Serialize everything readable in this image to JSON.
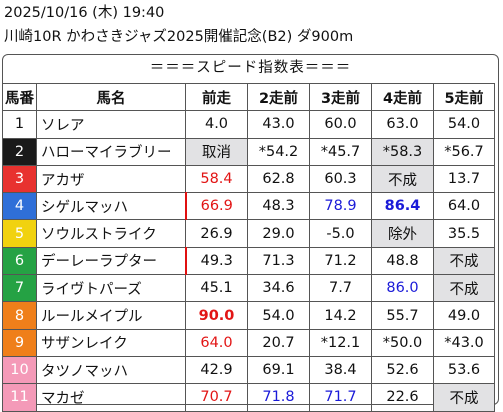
{
  "header": {
    "datetime": "2025/10/16 (木) 19:40",
    "race": "川崎10R かわさきジャズ2025開催記念(B2) ダ900m"
  },
  "table_title": "＝＝＝スピード指数表＝＝＝",
  "columns": [
    "馬番",
    "馬名",
    "前走",
    "2走前",
    "3走前",
    "4走前",
    "5走前"
  ],
  "rows": [
    {
      "no": "1",
      "name": "ソレア",
      "v": [
        "4.0",
        "43.0",
        "60.0",
        "63.0",
        "54.0"
      ]
    },
    {
      "no": "2",
      "name": "ハローマイラブリー",
      "v": [
        "取消",
        "*54.2",
        "*45.7",
        "*58.3",
        "*56.7"
      ]
    },
    {
      "no": "3",
      "name": "アカザ",
      "v": [
        "58.4",
        "62.8",
        "60.3",
        "不成",
        "13.7"
      ]
    },
    {
      "no": "4",
      "name": "シゲルマッハ",
      "v": [
        "66.9",
        "48.3",
        "78.9",
        "86.4",
        "64.0"
      ]
    },
    {
      "no": "5",
      "name": "ソウルストライク",
      "v": [
        "26.9",
        "29.0",
        "-5.0",
        "除外",
        "35.5"
      ]
    },
    {
      "no": "6",
      "name": "デーレーラプター",
      "v": [
        "49.3",
        "71.3",
        "71.2",
        "48.8",
        "不成"
      ]
    },
    {
      "no": "7",
      "name": "ライヴトパーズ",
      "v": [
        "45.1",
        "34.6",
        "7.7",
        "86.0",
        "不成"
      ]
    },
    {
      "no": "8",
      "name": "ルールメイプル",
      "v": [
        "90.0",
        "54.0",
        "14.2",
        "55.7",
        "49.0"
      ]
    },
    {
      "no": "9",
      "name": "サザンレイク",
      "v": [
        "64.0",
        "20.7",
        "*12.1",
        "*50.0",
        "*43.0"
      ]
    },
    {
      "no": "10",
      "name": "タツノマッハ",
      "v": [
        "42.9",
        "69.1",
        "38.4",
        "52.6",
        "53.6"
      ]
    },
    {
      "no": "11",
      "name": "マカゼ",
      "v": [
        "70.7",
        "71.8",
        "71.7",
        "22.6",
        "不成"
      ]
    }
  ],
  "colors": {
    "gate_colors": [
      "#ffffff",
      "#1a1a1a",
      "#e8322f",
      "#2f6fd8",
      "#f1d20f",
      "#25a244",
      "#ef7f1a",
      "#f49ab8"
    ],
    "highlight_red": "#e21515",
    "highlight_blue": "#1a1ad8",
    "grey_cell": "#e2e2e4"
  }
}
